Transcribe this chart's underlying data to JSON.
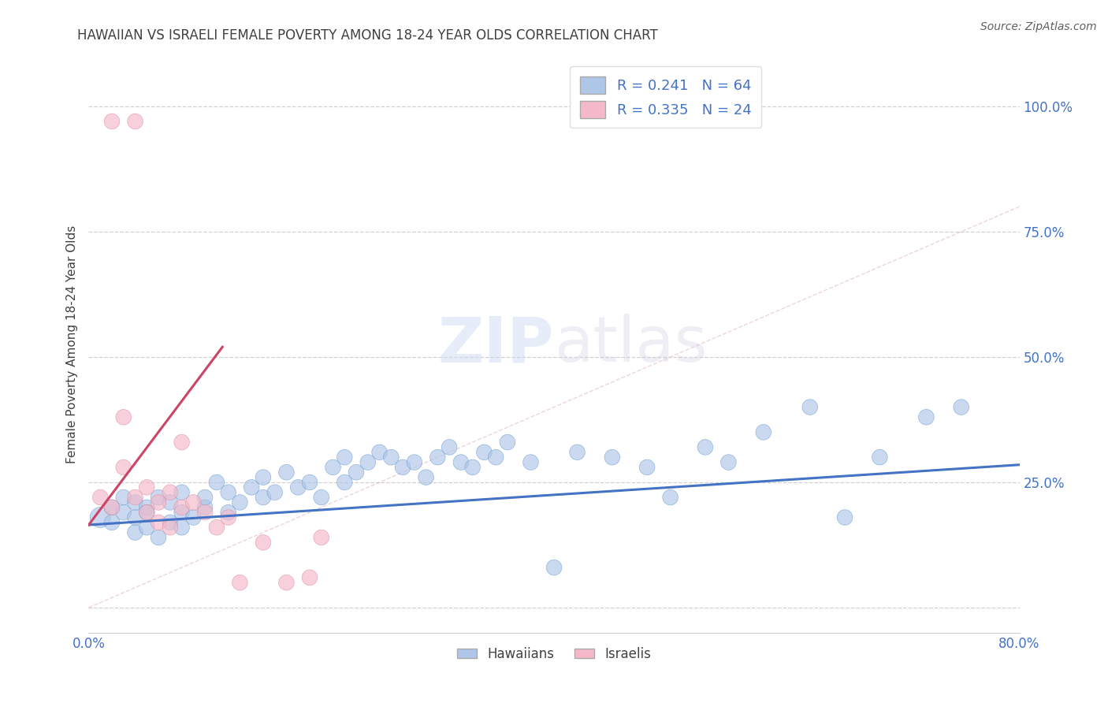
{
  "title": "HAWAIIAN VS ISRAELI FEMALE POVERTY AMONG 18-24 YEAR OLDS CORRELATION CHART",
  "source": "Source: ZipAtlas.com",
  "ylabel": "Female Poverty Among 18-24 Year Olds",
  "xlim": [
    0.0,
    0.8
  ],
  "ylim": [
    -0.05,
    1.1
  ],
  "yticks": [
    0.0,
    0.25,
    0.5,
    0.75,
    1.0
  ],
  "ytick_labels": [
    "",
    "25.0%",
    "50.0%",
    "75.0%",
    "100.0%"
  ],
  "xticks": [
    0.0,
    0.2,
    0.4,
    0.6,
    0.8
  ],
  "xtick_labels": [
    "0.0%",
    "",
    "",
    "",
    "80.0%"
  ],
  "watermark_zip": "ZIP",
  "watermark_atlas": "atlas",
  "hawaiian_color": "#aec6e8",
  "hawaiian_edge": "#6699cc",
  "israeli_color": "#f4b8c8",
  "israeli_edge": "#dd8899",
  "hawaiian_line_color": "#4472C4",
  "israeli_line_color": "#cc4466",
  "background_color": "#ffffff",
  "grid_color": "#cccccc",
  "title_color": "#404040",
  "tick_color": "#4472C4",
  "hawaiian_x": [
    0.01,
    0.02,
    0.02,
    0.03,
    0.03,
    0.04,
    0.04,
    0.04,
    0.05,
    0.05,
    0.05,
    0.06,
    0.06,
    0.07,
    0.07,
    0.08,
    0.08,
    0.08,
    0.09,
    0.1,
    0.1,
    0.11,
    0.12,
    0.12,
    0.13,
    0.14,
    0.15,
    0.15,
    0.16,
    0.17,
    0.18,
    0.19,
    0.2,
    0.21,
    0.22,
    0.22,
    0.23,
    0.24,
    0.25,
    0.26,
    0.27,
    0.28,
    0.29,
    0.3,
    0.31,
    0.32,
    0.33,
    0.34,
    0.35,
    0.36,
    0.38,
    0.4,
    0.42,
    0.45,
    0.48,
    0.5,
    0.53,
    0.55,
    0.58,
    0.62,
    0.65,
    0.68,
    0.72,
    0.75
  ],
  "hawaiian_y": [
    0.18,
    0.2,
    0.17,
    0.19,
    0.22,
    0.15,
    0.18,
    0.21,
    0.16,
    0.2,
    0.19,
    0.14,
    0.22,
    0.17,
    0.21,
    0.16,
    0.19,
    0.23,
    0.18,
    0.2,
    0.22,
    0.25,
    0.19,
    0.23,
    0.21,
    0.24,
    0.22,
    0.26,
    0.23,
    0.27,
    0.24,
    0.25,
    0.22,
    0.28,
    0.25,
    0.3,
    0.27,
    0.29,
    0.31,
    0.3,
    0.28,
    0.29,
    0.26,
    0.3,
    0.32,
    0.29,
    0.28,
    0.31,
    0.3,
    0.33,
    0.29,
    0.08,
    0.31,
    0.3,
    0.28,
    0.22,
    0.32,
    0.29,
    0.35,
    0.4,
    0.18,
    0.3,
    0.38,
    0.4
  ],
  "hawaiian_sizes": [
    350,
    200,
    200,
    200,
    200,
    200,
    200,
    200,
    200,
    200,
    200,
    200,
    200,
    200,
    200,
    200,
    200,
    200,
    200,
    200,
    200,
    200,
    200,
    200,
    200,
    200,
    200,
    200,
    200,
    200,
    200,
    200,
    200,
    200,
    200,
    200,
    200,
    200,
    200,
    200,
    200,
    200,
    200,
    200,
    200,
    200,
    200,
    200,
    200,
    200,
    200,
    200,
    200,
    200,
    200,
    200,
    200,
    200,
    200,
    200,
    200,
    200,
    200,
    200
  ],
  "israeli_x": [
    0.02,
    0.04,
    0.01,
    0.02,
    0.03,
    0.03,
    0.04,
    0.05,
    0.05,
    0.06,
    0.06,
    0.07,
    0.07,
    0.08,
    0.08,
    0.09,
    0.1,
    0.11,
    0.12,
    0.13,
    0.15,
    0.17,
    0.19,
    0.2
  ],
  "israeli_y": [
    0.97,
    0.97,
    0.22,
    0.2,
    0.38,
    0.28,
    0.22,
    0.24,
    0.19,
    0.21,
    0.17,
    0.23,
    0.16,
    0.33,
    0.2,
    0.21,
    0.19,
    0.16,
    0.18,
    0.05,
    0.13,
    0.05,
    0.06,
    0.14
  ],
  "israeli_sizes": [
    200,
    200,
    200,
    200,
    200,
    200,
    200,
    200,
    200,
    200,
    200,
    200,
    200,
    200,
    200,
    200,
    200,
    200,
    200,
    200,
    200,
    200,
    200,
    200
  ],
  "hawaiian_line_x": [
    0.0,
    0.8
  ],
  "hawaiian_line_y": [
    0.165,
    0.285
  ],
  "israeli_line_x": [
    0.0,
    0.115
  ],
  "israeli_line_y": [
    0.165,
    0.52
  ]
}
